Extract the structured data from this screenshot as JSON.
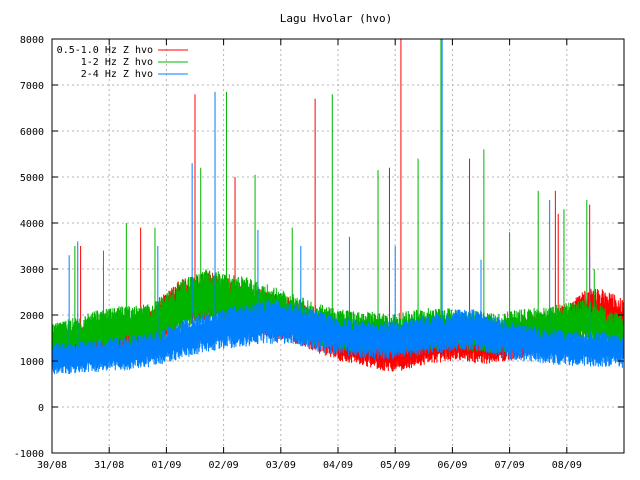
{
  "chart_data": {
    "type": "line",
    "title": "Lagu Hvolar (hvo)",
    "xlabel": "",
    "ylabel": "",
    "ylim": [
      -1000,
      8000
    ],
    "yticks": [
      -1000,
      0,
      1000,
      2000,
      3000,
      4000,
      5000,
      6000,
      7000,
      8000
    ],
    "xlim": [
      "30/08",
      "10/09"
    ],
    "xticks": [
      "30/08",
      "31/08",
      "01/09",
      "02/09",
      "03/09",
      "04/09",
      "05/09",
      "06/09",
      "07/09",
      "08/09",
      "09/09"
    ],
    "grid": true,
    "legend": "top-left",
    "series": [
      {
        "name": "0.5-1.0 Hz Z hvo",
        "color": "#ff0000",
        "x": [
          0,
          0.25,
          0.5,
          0.75,
          1.0,
          1.25,
          1.5,
          1.75,
          2.0,
          2.25,
          2.5,
          2.75,
          3.0,
          3.25,
          3.5,
          3.75,
          4.0,
          4.25,
          4.5,
          4.75,
          5.0,
          5.25,
          5.5,
          5.75,
          6.0,
          6.25,
          6.5,
          6.75,
          7.0,
          7.25,
          7.5,
          7.75,
          8.0,
          8.25,
          8.5,
          8.75,
          9.0,
          9.25,
          9.5,
          9.75,
          10.0
        ],
        "values": [
          1300,
          1350,
          1400,
          1450,
          1500,
          1500,
          1550,
          1650,
          2000,
          2250,
          2350,
          2400,
          2300,
          2200,
          2100,
          2000,
          1950,
          1850,
          1700,
          1550,
          1400,
          1350,
          1250,
          1150,
          1100,
          1200,
          1300,
          1350,
          1400,
          1350,
          1300,
          1350,
          1400,
          1500,
          1600,
          1650,
          1800,
          2000,
          2100,
          2000,
          1850
        ],
        "spikes": [
          [
            0.5,
            3500
          ],
          [
            1.55,
            3900
          ],
          [
            2.5,
            6800
          ],
          [
            3.2,
            5000
          ],
          [
            4.6,
            6700
          ],
          [
            5.9,
            5200
          ],
          [
            6.1,
            8000
          ],
          [
            7.3,
            5400
          ],
          [
            8.8,
            4700
          ],
          [
            8.85,
            4200
          ],
          [
            9.4,
            4400
          ]
        ]
      },
      {
        "name": "1-2 Hz Z hvo",
        "color": "#00b400",
        "x": [
          0,
          0.25,
          0.5,
          0.75,
          1.0,
          1.25,
          1.5,
          1.75,
          2.0,
          2.25,
          2.5,
          2.75,
          3.0,
          3.25,
          3.5,
          3.75,
          4.0,
          4.25,
          4.5,
          4.75,
          5.0,
          5.25,
          5.5,
          5.75,
          6.0,
          6.25,
          6.5,
          6.75,
          7.0,
          7.25,
          7.5,
          7.75,
          8.0,
          8.25,
          8.5,
          8.75,
          9.0,
          9.25,
          9.5,
          9.75,
          10.0
        ],
        "values": [
          1400,
          1500,
          1550,
          1650,
          1700,
          1750,
          1750,
          1800,
          2000,
          2200,
          2350,
          2450,
          2350,
          2300,
          2250,
          2150,
          2050,
          1950,
          1850,
          1750,
          1700,
          1650,
          1650,
          1600,
          1600,
          1650,
          1700,
          1700,
          1700,
          1650,
          1650,
          1600,
          1650,
          1700,
          1700,
          1750,
          1800,
          1850,
          1800,
          1650,
          1600
        ],
        "spikes": [
          [
            0.4,
            3500
          ],
          [
            1.3,
            4000
          ],
          [
            1.8,
            3900
          ],
          [
            2.6,
            5200
          ],
          [
            3.05,
            6850
          ],
          [
            3.55,
            5050
          ],
          [
            4.2,
            3900
          ],
          [
            4.9,
            6800
          ],
          [
            5.7,
            5150
          ],
          [
            6.4,
            5400
          ],
          [
            6.8,
            8000
          ],
          [
            7.55,
            5600
          ],
          [
            8.0,
            3800
          ],
          [
            8.5,
            4700
          ],
          [
            8.95,
            4300
          ],
          [
            9.35,
            4500
          ],
          [
            9.48,
            3000
          ]
        ]
      },
      {
        "name": "2-4 Hz Z hvo",
        "color": "#0080ff",
        "x": [
          0,
          0.25,
          0.5,
          0.75,
          1.0,
          1.25,
          1.5,
          1.75,
          2.0,
          2.25,
          2.5,
          2.75,
          3.0,
          3.25,
          3.5,
          3.75,
          4.0,
          4.25,
          4.5,
          4.75,
          5.0,
          5.25,
          5.5,
          5.75,
          6.0,
          6.25,
          6.5,
          6.75,
          7.0,
          7.25,
          7.5,
          7.75,
          8.0,
          8.25,
          8.5,
          8.75,
          9.0,
          9.25,
          9.5,
          9.75,
          10.0
        ],
        "values": [
          1050,
          1050,
          1100,
          1100,
          1150,
          1150,
          1200,
          1250,
          1350,
          1450,
          1550,
          1650,
          1700,
          1750,
          1800,
          1850,
          1850,
          1800,
          1700,
          1600,
          1550,
          1500,
          1450,
          1450,
          1450,
          1500,
          1550,
          1600,
          1650,
          1700,
          1650,
          1550,
          1450,
          1400,
          1350,
          1300,
          1300,
          1250,
          1250,
          1250,
          1200
        ],
        "spikes": [
          [
            0.3,
            3300
          ],
          [
            0.45,
            3600
          ],
          [
            0.9,
            3400
          ],
          [
            1.85,
            3500
          ],
          [
            2.45,
            5300
          ],
          [
            2.85,
            6850
          ],
          [
            3.6,
            3850
          ],
          [
            4.35,
            3500
          ],
          [
            5.2,
            3700
          ],
          [
            6.0,
            3500
          ],
          [
            6.82,
            8000
          ],
          [
            7.5,
            3200
          ],
          [
            8.7,
            4500
          ],
          [
            9.4,
            3300
          ]
        ]
      }
    ]
  }
}
